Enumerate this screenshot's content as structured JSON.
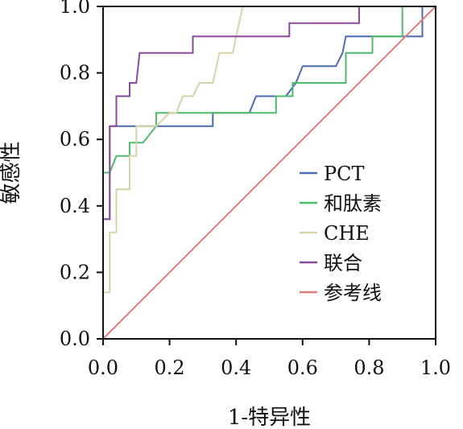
{
  "chart_data": {
    "type": "line",
    "xlabel": "1-特异性",
    "ylabel": "敏感性",
    "xlim": [
      0,
      1
    ],
    "ylim": [
      0,
      1
    ],
    "xticks": [
      "0.0",
      "0.2",
      "0.4",
      "0.6",
      "0.8",
      "1.0"
    ],
    "yticks": [
      "0.0",
      "0.2",
      "0.4",
      "0.6",
      "0.8",
      "1.0"
    ],
    "grid": false,
    "legend_position": "right",
    "series": [
      {
        "name": "PCT",
        "color": "#4a6ab4",
        "points": [
          [
            0,
            0.36
          ],
          [
            0.02,
            0.36
          ],
          [
            0.02,
            0.64
          ],
          [
            0.1,
            0.64
          ],
          [
            0.18,
            0.64
          ],
          [
            0.33,
            0.64
          ],
          [
            0.33,
            0.68
          ],
          [
            0.44,
            0.68
          ],
          [
            0.46,
            0.73
          ],
          [
            0.55,
            0.73
          ],
          [
            0.58,
            0.77
          ],
          [
            0.6,
            0.82
          ],
          [
            0.7,
            0.82
          ],
          [
            0.72,
            0.86
          ],
          [
            0.73,
            0.91
          ],
          [
            0.9,
            0.91
          ],
          [
            0.96,
            0.91
          ],
          [
            0.96,
            1.0
          ],
          [
            1.0,
            1.0
          ]
        ]
      },
      {
        "name": "和肽素",
        "color": "#4dbb6a",
        "points": [
          [
            0,
            0.41
          ],
          [
            0.0,
            0.5
          ],
          [
            0.02,
            0.5
          ],
          [
            0.04,
            0.55
          ],
          [
            0.08,
            0.55
          ],
          [
            0.08,
            0.59
          ],
          [
            0.12,
            0.59
          ],
          [
            0.16,
            0.64
          ],
          [
            0.16,
            0.68
          ],
          [
            0.3,
            0.68
          ],
          [
            0.4,
            0.68
          ],
          [
            0.45,
            0.68
          ],
          [
            0.52,
            0.68
          ],
          [
            0.52,
            0.73
          ],
          [
            0.57,
            0.73
          ],
          [
            0.57,
            0.77
          ],
          [
            0.73,
            0.77
          ],
          [
            0.73,
            0.86
          ],
          [
            0.81,
            0.86
          ],
          [
            0.81,
            0.91
          ],
          [
            0.9,
            0.91
          ],
          [
            0.9,
            1.0
          ],
          [
            1.0,
            1.0
          ]
        ]
      },
      {
        "name": "CHE",
        "color": "#d7d2aa",
        "points": [
          [
            0,
            0.14
          ],
          [
            0.02,
            0.14
          ],
          [
            0.02,
            0.32
          ],
          [
            0.04,
            0.32
          ],
          [
            0.04,
            0.45
          ],
          [
            0.08,
            0.45
          ],
          [
            0.08,
            0.55
          ],
          [
            0.1,
            0.55
          ],
          [
            0.1,
            0.64
          ],
          [
            0.16,
            0.64
          ],
          [
            0.2,
            0.68
          ],
          [
            0.22,
            0.68
          ],
          [
            0.24,
            0.73
          ],
          [
            0.27,
            0.73
          ],
          [
            0.29,
            0.77
          ],
          [
            0.33,
            0.77
          ],
          [
            0.35,
            0.86
          ],
          [
            0.39,
            0.86
          ],
          [
            0.4,
            0.91
          ],
          [
            0.42,
            1.0
          ],
          [
            1.0,
            1.0
          ]
        ]
      },
      {
        "name": "联合",
        "color": "#8a4a9e",
        "points": [
          [
            0,
            0.36
          ],
          [
            0.02,
            0.36
          ],
          [
            0.02,
            0.64
          ],
          [
            0.04,
            0.64
          ],
          [
            0.04,
            0.73
          ],
          [
            0.08,
            0.73
          ],
          [
            0.08,
            0.77
          ],
          [
            0.1,
            0.77
          ],
          [
            0.11,
            0.86
          ],
          [
            0.21,
            0.86
          ],
          [
            0.27,
            0.86
          ],
          [
            0.27,
            0.91
          ],
          [
            0.56,
            0.91
          ],
          [
            0.56,
            0.95
          ],
          [
            0.77,
            0.95
          ],
          [
            0.77,
            1.0
          ],
          [
            1.0,
            1.0
          ]
        ]
      },
      {
        "name": "参考线",
        "color": "#e07c7c",
        "points": [
          [
            0,
            0
          ],
          [
            1,
            1
          ]
        ]
      }
    ]
  }
}
